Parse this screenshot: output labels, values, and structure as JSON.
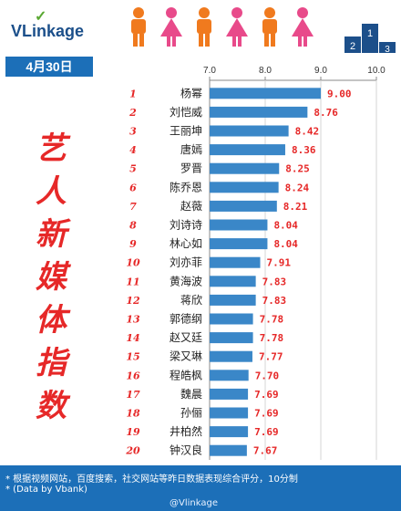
{
  "brand": {
    "name": "VLinkage",
    "credit": "@Vlinkage"
  },
  "date_label": "4月30日",
  "side_title": "艺人新媒体指数",
  "notes": [
    "* 根据视频网站，百度搜索，社交网站等昨日数据表现综合评分，10分制",
    "* (Data by Vbank)"
  ],
  "colors": {
    "bar": "#3a87c8",
    "value": "#e62828",
    "rank": "#e62828",
    "header_blue": "#1c6fb8",
    "person_orange": "#f07a1e",
    "person_pink": "#e84a8a"
  },
  "icons": [
    "person-orange-icon",
    "person-pink-icon",
    "podium-icon"
  ],
  "chart_data": {
    "type": "bar",
    "orientation": "horizontal",
    "title": "",
    "xlabel": "",
    "ylabel": "",
    "xlim": [
      7.0,
      10.0
    ],
    "xticks": [
      "7.0",
      "8.0",
      "9.0",
      "10.0"
    ],
    "grid": true,
    "categories": [
      "杨幂",
      "刘恺威",
      "王丽坤",
      "唐嫣",
      "罗晋",
      "陈乔恩",
      "赵薇",
      "刘诗诗",
      "林心如",
      "刘亦菲",
      "黄海波",
      "蒋欣",
      "郭德纲",
      "赵又廷",
      "梁又琳",
      "程皓枫",
      "魏晨",
      "孙俪",
      "井柏然",
      "钟汉良"
    ],
    "ranks": [
      "1",
      "2",
      "3",
      "4",
      "5",
      "6",
      "7",
      "8",
      "9",
      "10",
      "11",
      "12",
      "13",
      "14",
      "15",
      "16",
      "17",
      "18",
      "19",
      "20"
    ],
    "values": [
      9.0,
      8.76,
      8.42,
      8.36,
      8.25,
      8.24,
      8.21,
      8.04,
      8.04,
      7.91,
      7.83,
      7.83,
      7.78,
      7.78,
      7.77,
      7.7,
      7.69,
      7.69,
      7.69,
      7.67
    ],
    "value_labels": [
      "9.00",
      "8.76",
      "8.42",
      "8.36",
      "8.25",
      "8.24",
      "8.21",
      "8.04",
      "8.04",
      "7.91",
      "7.83",
      "7.83",
      "7.78",
      "7.78",
      "7.77",
      "7.70",
      "7.69",
      "7.69",
      "7.69",
      "7.67"
    ]
  }
}
